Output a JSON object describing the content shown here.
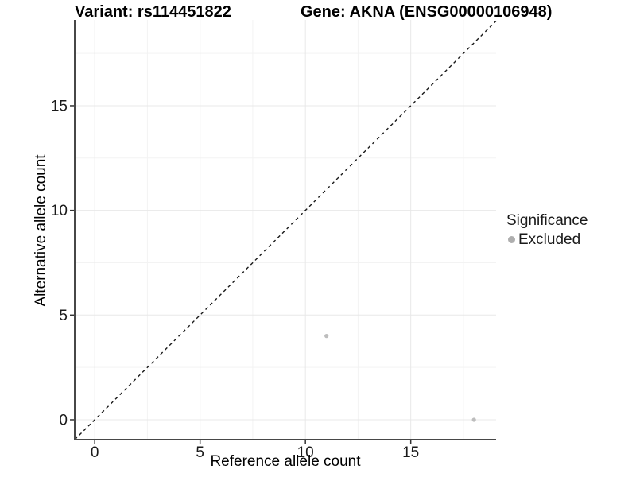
{
  "chart_data": {
    "type": "scatter",
    "title_left": "Variant: rs114451822",
    "title_right": "Gene: AKNA (ENSG00000106948)",
    "xlabel": "Reference allele count",
    "ylabel": "Alternative allele count",
    "xlim": [
      -0.95,
      19.05
    ],
    "ylim": [
      -0.95,
      19.1
    ],
    "x_major_ticks": [
      0,
      5,
      10,
      15
    ],
    "x_minor_ticks": [
      2.5,
      7.5,
      12.5,
      17.5
    ],
    "y_major_ticks": [
      0,
      5,
      10,
      15
    ],
    "y_minor_ticks": [
      2.5,
      7.5,
      12.5,
      17.5
    ],
    "grid": true,
    "identity_line": {
      "slope": 1,
      "intercept": 0,
      "style": "dashed",
      "color": "#1a1a1a"
    },
    "series": [
      {
        "name": "Excluded",
        "color": "#bdbdbd",
        "points": [
          {
            "x": 11,
            "y": 4
          },
          {
            "x": 18,
            "y": 0
          }
        ]
      }
    ],
    "legend": {
      "title": "Significance",
      "position": "right",
      "items": [
        {
          "label": "Excluded",
          "color": "#aeaeae"
        }
      ]
    },
    "colors": {
      "background": "#ffffff",
      "grid_major": "#e8e8e8",
      "grid_minor": "#f3f3f3",
      "axis_line": "#474747",
      "tick_mark": "#333333",
      "tick_label": "#1a1a1a",
      "point": "#bdbdbd"
    }
  }
}
